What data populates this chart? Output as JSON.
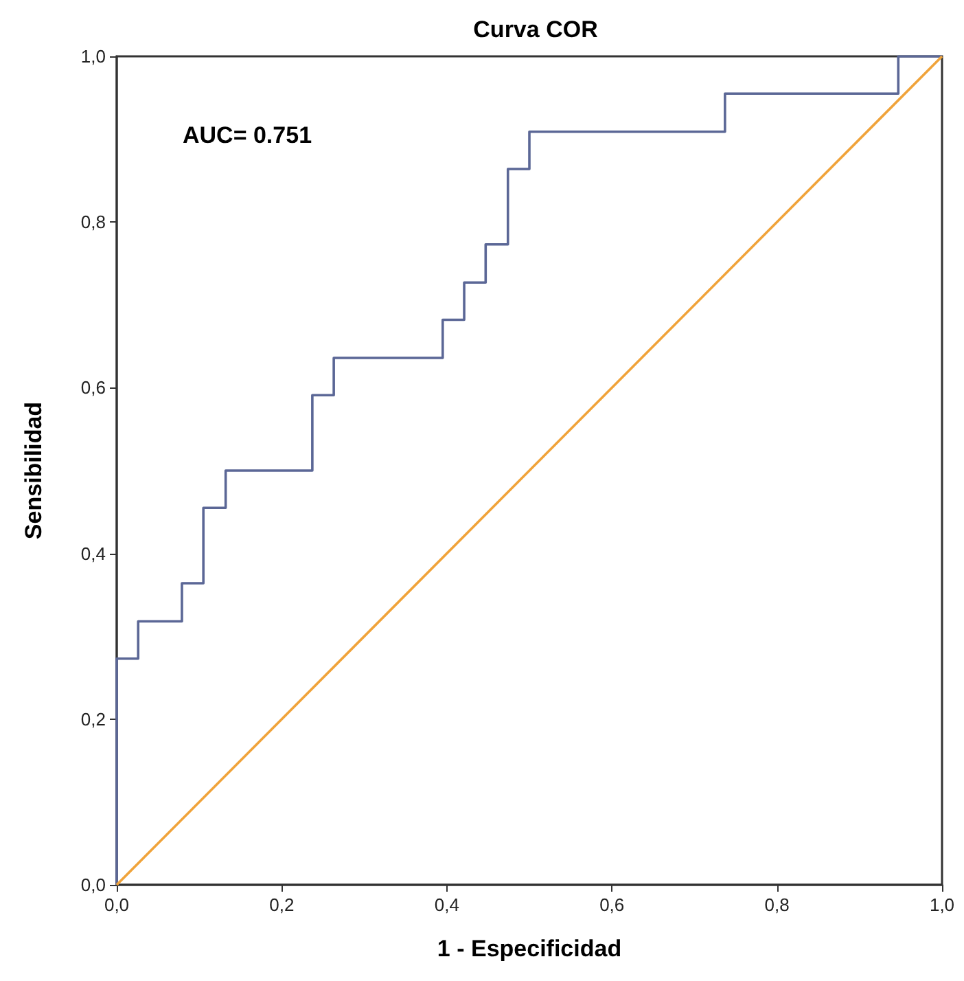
{
  "chart_data": {
    "type": "step",
    "title": "Curva COR",
    "xlabel": "1 - Especificidad",
    "ylabel": "Sensibilidad",
    "annotations": [
      "AUC= 0.751"
    ],
    "series": [
      {
        "color": "#5b6796",
        "x": [
          0,
          0,
          0.026,
          0.079,
          0.105,
          0.132,
          0.237,
          0.263,
          0.395,
          0.421,
          0.447,
          0.474,
          0.5,
          0.737,
          0.947,
          1
        ],
        "values": [
          0,
          0.273,
          0.318,
          0.364,
          0.455,
          0.5,
          0.591,
          0.636,
          0.682,
          0.727,
          0.773,
          0.864,
          0.909,
          0.955,
          1,
          1
        ]
      },
      {
        "type": "line",
        "color": "#f0a33a",
        "x": [
          0,
          1
        ],
        "values": [
          0,
          1
        ]
      }
    ],
    "xlim": [
      0,
      1
    ],
    "ylim": [
      0,
      1
    ],
    "xticks": [
      {
        "value": 0,
        "label": "0,0"
      },
      {
        "value": 0.2,
        "label": "0,2"
      },
      {
        "value": 0.4,
        "label": "0,4"
      },
      {
        "value": 0.6,
        "label": "0,6"
      },
      {
        "value": 0.8,
        "label": "0,8"
      },
      {
        "value": 1,
        "label": "1,0"
      }
    ],
    "yticks": [
      {
        "value": 0,
        "label": "0,0"
      },
      {
        "value": 0.2,
        "label": "0,2"
      },
      {
        "value": 0.4,
        "label": "0,4"
      },
      {
        "value": 0.6,
        "label": "0,6"
      },
      {
        "value": 0.8,
        "label": "0,8"
      },
      {
        "value": 1,
        "label": "1,0"
      }
    ],
    "grid": false,
    "marker": "none",
    "line_style": "solid"
  }
}
